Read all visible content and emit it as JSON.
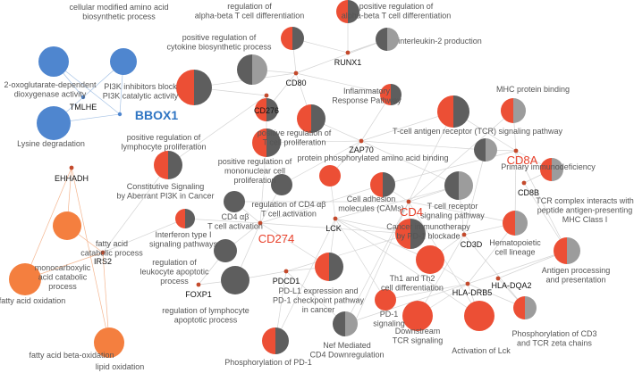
{
  "colors": {
    "dark_gray": "#5e5e5e",
    "light_gray": "#9c9c9c",
    "red": "#ec4f35",
    "orange": "#f47f3f",
    "blue": "#4f86cf",
    "gene_dot": "#c44a2c",
    "label_gray": "#555555",
    "label_red": "#e8402a",
    "label_blue": "#2f75c3"
  },
  "terms": {
    "cellular_modified_aa": "cellular modified amino acid|biosynthetic process",
    "oxoglutarate": "2-oxoglutarate-dependent|dioxygenase activity",
    "pi3k_inhibitors": "PI3K inhibitors block|PI3K catalytic activity",
    "lysine_degradation": "Lysine degradation",
    "reg_abt_diff": "regulation of|alpha-beta T cell differentiation",
    "pos_reg_abt_diff": "positive regulation of|alpha-beta T cell differentiation",
    "pos_reg_cytokine": "positive regulation of|cytokine biosynthetic process",
    "il2": "interleukin-2 production",
    "inflammatory": "Inflammatory|Response Pathway",
    "mhc_binding": "MHC protein binding",
    "tcr_signaling_pathway": "T-cell antigen receptor (TCR) signaling pathway",
    "pos_reg_lymph_prolif": "positive regulation of|lymphocyte proliferation",
    "pos_reg_t_prolif": "positive regulation of|T cell proliferation",
    "pos_reg_mono_prolif": "positive regulation of|mononuclear cell|proliferation",
    "protein_phos_aa": "protein phosphorylated amino acid binding",
    "primary_immuno": "Primary immunodeficiency",
    "constitutive_pi3k": "Constitutive Signaling|by Aberrant PI3K in Cancer",
    "reg_cd4_activation": "regulation of CD4 αβ|T cell activation",
    "cd4ab_activation": "CD4 αβ|T cell activation",
    "cams": "Cell adhesion|molecules (CAMs)",
    "tcr_receptor_signaling": "T cell receptor|signaling pathway",
    "tcr_complex": "TCR complex interacts with|peptide antigen-presenting|MHC Class I",
    "ifn1": "Interferon type I|signaling pathways",
    "cancer_immuno": "Cancer immunotherapy|by PD-1 blockade",
    "hematopoietic": "Hematopoietic|cell lineage",
    "fatty_acid_catabolic": "fatty acid|catabolic process",
    "reg_leukocyte_apop": "regulation of|leukocyte apoptotic|process",
    "monocarboxylic": "monocarboxylic|acid catabolic|process",
    "antigen_processing": "Antigen processing|and presentation",
    "th1_th2": "Th1 and Th2|cell differentiation",
    "pdl1_expression": "PD-L1 expression and|PD-1 checkpoint pathway|in cancer",
    "fatty_acid_oxidation": "fatty acid oxidation",
    "reg_lymph_apop": "regulation of lymphocyte|apoptotic process",
    "pd1_signaling": "PD-1|signaling",
    "downstream_tcr": "Downstream|TCR signaling",
    "activation_lck": "Activation of Lck",
    "phos_cd3_zeta": "Phosphorylation of CD3|and TCR zeta chains",
    "fatty_acid_beta": "fatty acid beta-oxidation",
    "nef_cd4": "Nef Mediated|CD4 Downregulation",
    "lipid_oxidation": "lipid oxidation",
    "phos_pd1": "Phosphorylation of PD-1"
  },
  "genes": {
    "tmlhe": "TMLHE",
    "bbox1": "BBOX1",
    "runx1": "RUNX1",
    "cd80": "CD80",
    "cd276": "CD276",
    "zap70": "ZAP70",
    "cd8a": "CD8A",
    "cd8b": "CD8B",
    "ehhadh": "EHHADH",
    "cd4": "CD4",
    "lck": "LCK",
    "cd274": "CD274",
    "cd3d": "CD3D",
    "irs2": "IRS2",
    "pdcd1": "PDCD1",
    "foxp1": "FOXP1",
    "hla_dqa2": "HLA-DQA2",
    "hla_drb5": "HLA-DRB5"
  }
}
